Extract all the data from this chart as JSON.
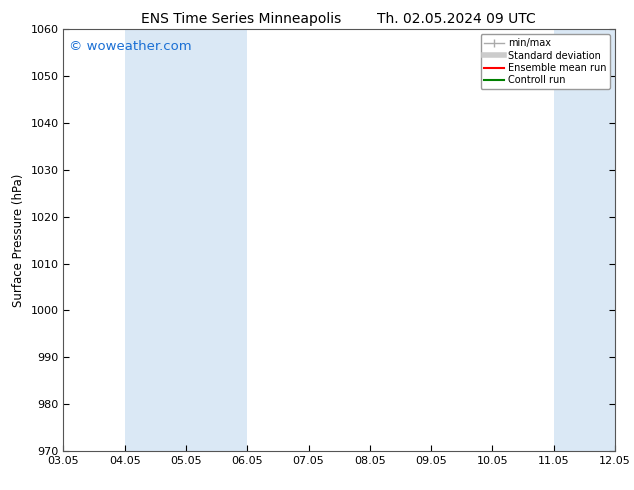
{
  "title_left": "ENS Time Series Minneapolis",
  "title_right": "Th. 02.05.2024 09 UTC",
  "ylabel": "Surface Pressure (hPa)",
  "xlim": [
    0,
    9
  ],
  "ylim": [
    970,
    1060
  ],
  "yticks": [
    970,
    980,
    990,
    1000,
    1010,
    1020,
    1030,
    1040,
    1050,
    1060
  ],
  "xtick_labels": [
    "03.05",
    "04.05",
    "05.05",
    "06.05",
    "07.05",
    "08.05",
    "09.05",
    "10.05",
    "11.05",
    "12.05"
  ],
  "bg_color": "#ffffff",
  "plot_bg_color": "#ffffff",
  "shaded_bands": [
    {
      "xmin": 1.0,
      "xmax": 3.0
    },
    {
      "xmin": 8.0,
      "xmax": 9.0
    }
  ],
  "shaded_color": "#dae8f5",
  "watermark_text": "© woweather.com",
  "watermark_color": "#1a6fd4",
  "legend_items": [
    {
      "label": "min/max",
      "color": "#aaaaaa",
      "lw": 1.0
    },
    {
      "label": "Standard deviation",
      "color": "#cccccc",
      "lw": 4
    },
    {
      "label": "Ensemble mean run",
      "color": "#ff0000",
      "lw": 1.5
    },
    {
      "label": "Controll run",
      "color": "#008000",
      "lw": 1.5
    }
  ],
  "title_fontsize": 10,
  "tick_fontsize": 8,
  "ylabel_fontsize": 8.5,
  "watermark_fontsize": 9.5
}
